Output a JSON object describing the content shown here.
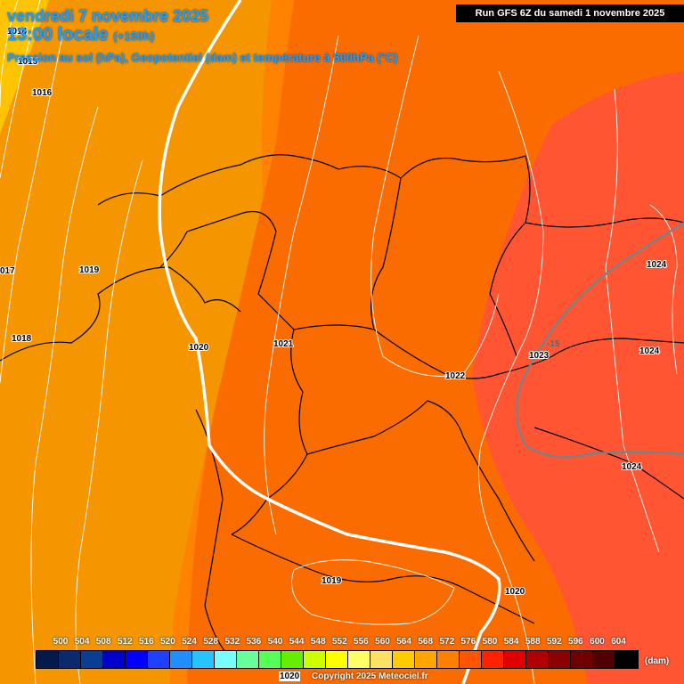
{
  "header": {
    "date_line": "vendredi 7 novembre 2025",
    "time_line": "13:00 locale",
    "lead_time": "(+150h)",
    "product_line": "Pression au sol (hPa), Geopotentiel (dam) et température à 500hPa (°C)"
  },
  "run_info": "Run GFS 6Z du samedi 1 novembre 2025",
  "isobar_labels": [
    "1014",
    "1015",
    "1016",
    "017",
    "1019",
    "1018",
    "1020",
    "1021",
    "1022",
    "1023",
    "1024",
    "1024",
    "1024",
    "1019",
    "1020",
    "1020"
  ],
  "temperature_label": "-15",
  "legend": {
    "unit": "(dam)",
    "values": [
      "500",
      "504",
      "508",
      "512",
      "516",
      "520",
      "524",
      "528",
      "532",
      "536",
      "540",
      "544",
      "548",
      "552",
      "556",
      "560",
      "564",
      "568",
      "572",
      "576",
      "580",
      "584",
      "588",
      "592",
      "596",
      "600",
      "604"
    ],
    "colors": [
      "#041a4a",
      "#0a2a6e",
      "#0a3e93",
      "#0000cc",
      "#0000ff",
      "#2040ff",
      "#1f8fff",
      "#25c4ff",
      "#77ffff",
      "#66ff99",
      "#55ff55",
      "#66ee00",
      "#ccff00",
      "#ffff00",
      "#ffff66",
      "#ffe066",
      "#ffcc00",
      "#ffa500",
      "#ff8000",
      "#ff5500",
      "#ff2200",
      "#e00000",
      "#b00000",
      "#8b0000",
      "#700000",
      "#500000",
      "#000000"
    ]
  },
  "geopotential_zones": [
    {
      "value": "564-568",
      "color": "#ffa500"
    },
    {
      "value": "568-572",
      "color": "#ff8000"
    },
    {
      "value": "572-576",
      "color": "#ff6a00"
    },
    {
      "value": "576-580",
      "color": "#ff5030"
    }
  ],
  "copyright": "Copyright 2025 Meteociel.fr",
  "bottom_isobar_label": "1020"
}
